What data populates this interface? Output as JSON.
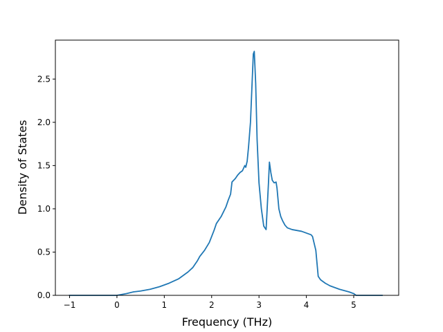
{
  "chart_data": {
    "type": "line",
    "title": "",
    "xlabel": "Frequency (THz)",
    "ylabel": "Density of States",
    "xlim": [
      -1.3,
      5.95
    ],
    "ylim": [
      0.0,
      2.95
    ],
    "xticks": [
      -1,
      0,
      1,
      2,
      3,
      4,
      5
    ],
    "xtick_labels": [
      "−1",
      "0",
      "1",
      "2",
      "3",
      "4",
      "5"
    ],
    "yticks": [
      0.0,
      0.5,
      1.0,
      1.5,
      2.0,
      2.5
    ],
    "ytick_labels": [
      "0.0",
      "0.5",
      "1.0",
      "1.5",
      "2.0",
      "2.5"
    ],
    "grid": false,
    "legend": "none",
    "series": [
      {
        "color": "#1f77b4",
        "x": [
          -1.0,
          -0.4,
          0.0,
          0.2,
          0.35,
          0.5,
          0.7,
          0.9,
          1.1,
          1.3,
          1.5,
          1.6,
          1.7,
          1.75,
          1.85,
          1.95,
          2.0,
          2.05,
          2.1,
          2.2,
          2.3,
          2.35,
          2.4,
          2.43,
          2.5,
          2.55,
          2.6,
          2.65,
          2.7,
          2.72,
          2.75,
          2.78,
          2.82,
          2.85,
          2.88,
          2.9,
          2.93,
          2.96,
          3.0,
          3.05,
          3.1,
          3.15,
          3.2,
          3.22,
          3.25,
          3.28,
          3.32,
          3.36,
          3.38,
          3.42,
          3.46,
          3.5,
          3.55,
          3.6,
          3.7,
          3.8,
          3.9,
          4.0,
          4.05,
          4.1,
          4.13,
          4.2,
          4.25,
          4.3,
          4.4,
          4.5,
          4.7,
          4.9,
          5.0,
          5.05,
          5.2,
          5.6
        ],
        "y": [
          0.0,
          0.0,
          0.0,
          0.02,
          0.04,
          0.05,
          0.07,
          0.1,
          0.14,
          0.19,
          0.27,
          0.32,
          0.4,
          0.45,
          0.52,
          0.61,
          0.68,
          0.75,
          0.83,
          0.91,
          1.02,
          1.1,
          1.17,
          1.31,
          1.35,
          1.39,
          1.42,
          1.44,
          1.5,
          1.48,
          1.55,
          1.72,
          2.0,
          2.4,
          2.79,
          2.82,
          2.45,
          1.8,
          1.3,
          1.0,
          0.8,
          0.76,
          1.3,
          1.54,
          1.42,
          1.33,
          1.3,
          1.31,
          1.24,
          1.0,
          0.91,
          0.86,
          0.81,
          0.78,
          0.76,
          0.75,
          0.74,
          0.72,
          0.71,
          0.7,
          0.68,
          0.52,
          0.22,
          0.18,
          0.14,
          0.11,
          0.07,
          0.04,
          0.02,
          0.0,
          0.0,
          0.0
        ]
      }
    ]
  }
}
